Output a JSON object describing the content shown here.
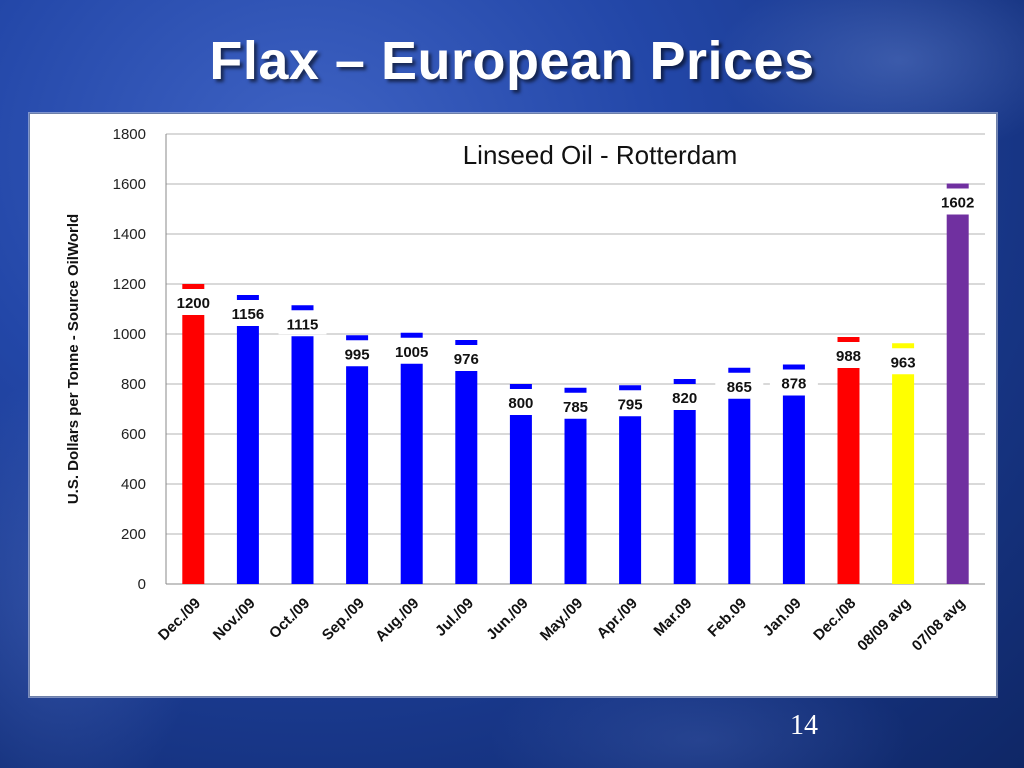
{
  "slide": {
    "title": "Flax – European Prices",
    "page_number": "14"
  },
  "chart_data": {
    "type": "bar",
    "title": "Linseed Oil - Rotterdam",
    "xlabel": "",
    "ylabel": "U.S. Dollars per Tonne - Source OilWorld",
    "ylim": [
      0,
      1800
    ],
    "yticks": [
      0,
      200,
      400,
      600,
      800,
      1000,
      1200,
      1400,
      1600,
      1800
    ],
    "grid": true,
    "categories": [
      "Dec./09",
      "Nov./09",
      "Oct./09",
      "Sep./09",
      "Aug./09",
      "Jul./09",
      "Jun./09",
      "May./09",
      "Apr./09",
      "Mar.09",
      "Feb.09",
      "Jan.09",
      "Dec./08",
      "08/09 avg",
      "07/08 avg"
    ],
    "values": [
      1200,
      1156,
      1115,
      995,
      1005,
      976,
      800,
      785,
      795,
      820,
      865,
      878,
      988,
      963,
      1602
    ],
    "colors": [
      "#ff0000",
      "#0000ff",
      "#0000ff",
      "#0000ff",
      "#0000ff",
      "#0000ff",
      "#0000ff",
      "#0000ff",
      "#0000ff",
      "#0000ff",
      "#0000ff",
      "#0000ff",
      "#ff0000",
      "#ffff00",
      "#7030a0"
    ]
  }
}
